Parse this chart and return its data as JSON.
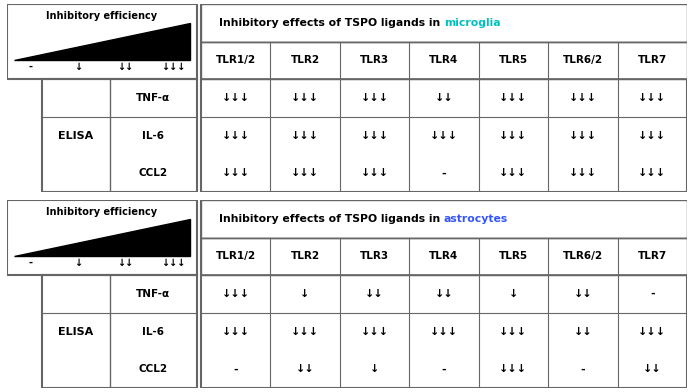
{
  "title1_plain": "Inhibitory effects of TSPO ligands in ",
  "title1_colored": "microglia",
  "title2_plain": "Inhibitory effects of TSPO ligands in ",
  "title2_colored": "astrocytes",
  "color_microglia": "#00BFBF",
  "color_astrocytes": "#3355FF",
  "legend_title": "Inhibitory efficiency",
  "legend_labels": [
    "-",
    "↓",
    "↓↓",
    "↓↓↓"
  ],
  "tlr_columns": [
    "TLR1/2",
    "TLR2",
    "TLR3",
    "TLR4",
    "TLR5",
    "TLR6/2",
    "TLR7"
  ],
  "elisa_rows": [
    "TNF-α",
    "IL-6",
    "CCL2"
  ],
  "microglia_data": [
    [
      "↓↓↓",
      "↓↓↓",
      "↓↓↓",
      "↓↓",
      "↓↓↓",
      "↓↓↓",
      "↓↓↓"
    ],
    [
      "↓↓↓",
      "↓↓↓",
      "↓↓↓",
      "↓↓↓",
      "↓↓↓",
      "↓↓↓",
      "↓↓↓"
    ],
    [
      "↓↓↓",
      "↓↓↓",
      "↓↓↓",
      "-",
      "↓↓↓",
      "↓↓↓",
      "↓↓↓"
    ]
  ],
  "astrocytes_data": [
    [
      "↓↓↓",
      "↓",
      "↓↓",
      "↓↓",
      "↓",
      "↓↓",
      "-"
    ],
    [
      "↓↓↓",
      "↓↓↓",
      "↓↓↓",
      "↓↓↓",
      "↓↓↓",
      "↓↓",
      "↓↓↓"
    ],
    [
      "-",
      "↓↓",
      "↓",
      "-",
      "↓↓↓",
      "-",
      "↓↓"
    ]
  ],
  "bg_color": "#FFFFFF",
  "border_color": "#666666",
  "text_color": "#000000"
}
